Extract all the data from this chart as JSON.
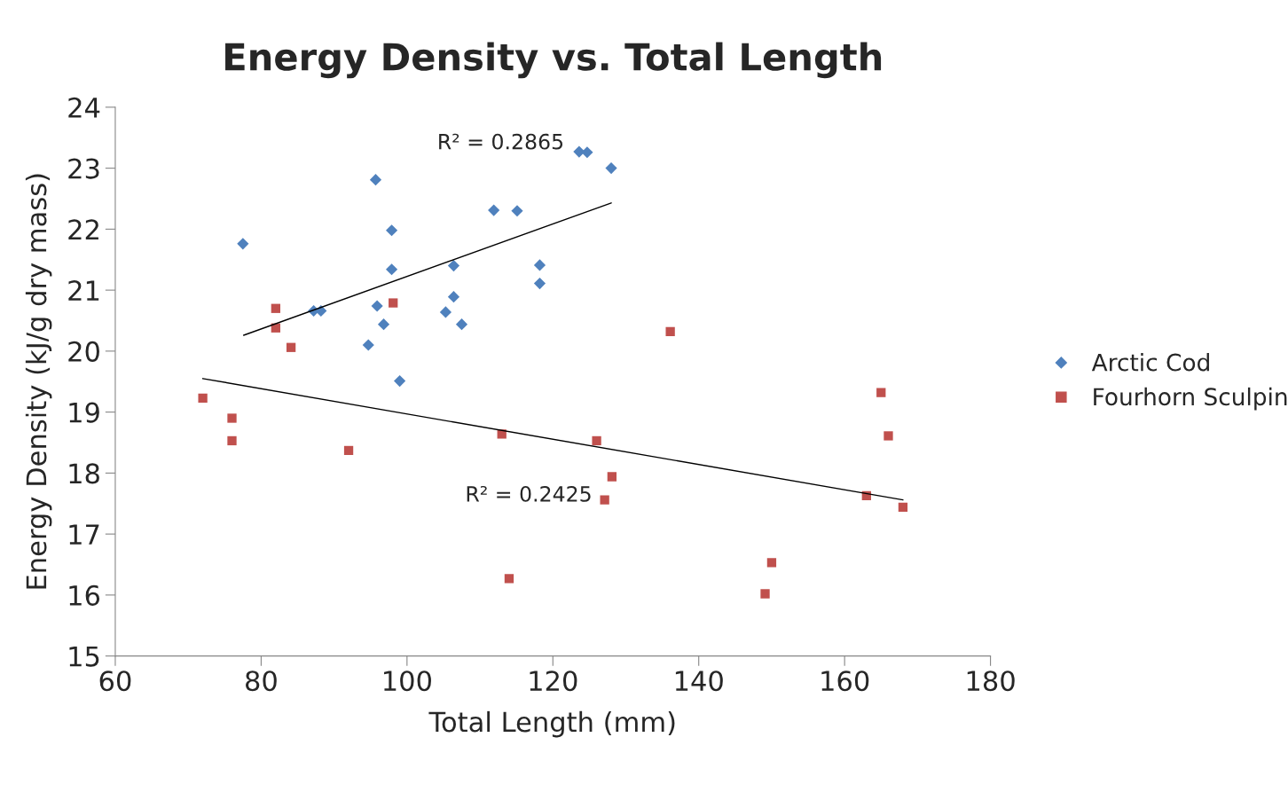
{
  "chart_data": {
    "type": "scatter",
    "title": "Energy Density vs. Total Length",
    "xlabel": "Total Length (mm)",
    "ylabel": "Energy Density (kJ/g dry mass)",
    "xlim": [
      60,
      180
    ],
    "xticks": [
      60,
      80,
      100,
      120,
      140,
      160,
      180
    ],
    "ylim": [
      15,
      24
    ],
    "yticks": [
      15,
      16,
      17,
      18,
      19,
      20,
      21,
      22,
      23,
      24
    ],
    "grid": false,
    "legend": "right",
    "series": [
      {
        "name": "Arctic Cod",
        "color": "#4f81bd",
        "marker": "diamond",
        "x": [
          77.5,
          95.7,
          97.9,
          97.9,
          87.2,
          88.2,
          95.9,
          96.8,
          94.7,
          99.0,
          106.4,
          106.4,
          105.3,
          107.5,
          111.9,
          115.1,
          118.2,
          118.2,
          123.6,
          124.7,
          128.0
        ],
        "values": [
          21.76,
          22.81,
          21.98,
          21.34,
          20.66,
          20.66,
          20.74,
          20.44,
          20.1,
          19.51,
          21.4,
          20.89,
          20.64,
          20.44,
          22.31,
          22.3,
          21.41,
          21.11,
          23.27,
          23.26,
          23.0
        ]
      },
      {
        "name": "Fourhorn Sculpin",
        "color": "#c0504d",
        "marker": "square",
        "x": [
          72.0,
          76.0,
          76.0,
          82.0,
          82.0,
          84.1,
          92.0,
          98.1,
          113.0,
          114.0,
          126.0,
          127.1,
          128.1,
          136.1,
          149.1,
          150.0,
          163.0,
          165.0,
          166.0,
          168.0
        ],
        "values": [
          19.23,
          18.9,
          18.53,
          20.7,
          20.38,
          20.06,
          18.37,
          20.79,
          18.64,
          16.27,
          18.53,
          17.56,
          17.94,
          20.32,
          16.02,
          16.53,
          17.63,
          19.32,
          18.61,
          17.44
        ]
      },
      {
        "type": "line",
        "color": "#000000",
        "marker": "none",
        "x": [
          77.6,
          128.0
        ],
        "values": [
          20.26,
          22.43
        ]
      },
      {
        "type": "line",
        "color": "#000000",
        "marker": "none",
        "x": [
          72.0,
          168.0
        ],
        "values": [
          19.55,
          17.56
        ]
      }
    ],
    "annotations": [
      "R² = 0.2865",
      "R² = 0.2425"
    ]
  }
}
